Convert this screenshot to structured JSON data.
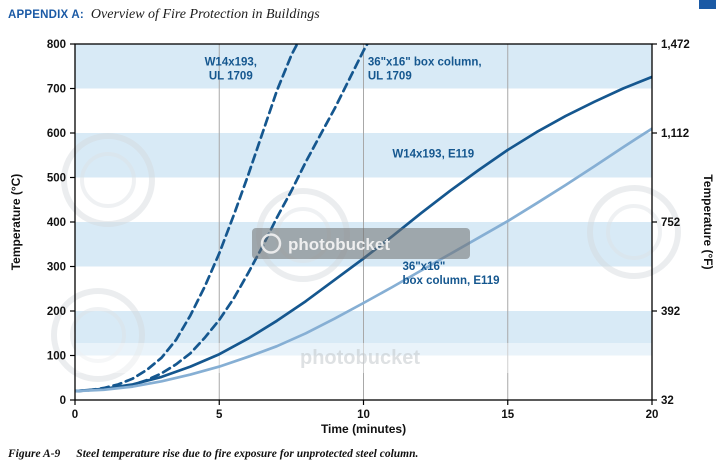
{
  "page": {
    "header_label": "APPENDIX A:",
    "header_title": "Overview of Fire Protection in Buildings",
    "accent_color": "#1b5aa5"
  },
  "caption": {
    "figure_label": "Figure A-9",
    "text": "Steel temperature rise due to fire exposure for unprotected steel column."
  },
  "watermark": {
    "text": "photobucket"
  },
  "chart_data": {
    "type": "line",
    "title": "",
    "xlabel": "Time (minutes)",
    "ylabel_left": "Temperature (°C)",
    "ylabel_right": "Temperature (°F)",
    "xlim": [
      0,
      20
    ],
    "ylim_c": [
      0,
      800
    ],
    "x_ticks": [
      0,
      5,
      10,
      15,
      20
    ],
    "y_ticks_left": [
      0,
      100,
      200,
      300,
      400,
      500,
      600,
      700,
      800
    ],
    "y_ticks_right": [
      {
        "c": 0,
        "label": "32"
      },
      {
        "c": 200,
        "label": "392"
      },
      {
        "c": 400,
        "label": "752"
      },
      {
        "c": 600,
        "label": "1,112"
      },
      {
        "c": 800,
        "label": "1,472"
      }
    ],
    "band_color": "#d8eaf6",
    "band_ranges_c": [
      [
        100,
        200
      ],
      [
        300,
        400
      ],
      [
        500,
        600
      ],
      [
        700,
        800
      ]
    ],
    "gridlines_x": [
      5,
      10,
      15
    ],
    "grid_color": "#a8a8a8",
    "frame_color": "#000000",
    "series": [
      {
        "name": "W14x193, UL 1709",
        "style": "dashed",
        "color": "#15578f",
        "x": [
          0,
          0.5,
          1,
          1.5,
          2,
          2.5,
          3,
          3.5,
          4,
          4.5,
          5,
          5.5,
          6,
          6.5,
          7,
          7.5,
          7.9
        ],
        "y": [
          20,
          22,
          27,
          35,
          48,
          68,
          95,
          135,
          190,
          255,
          330,
          415,
          505,
          600,
          695,
          775,
          825
        ]
      },
      {
        "name": "36\"x16\" box column, UL 1709",
        "style": "dashed",
        "color": "#15578f",
        "x": [
          0,
          1,
          2,
          2.5,
          3,
          3.5,
          4,
          4.5,
          5,
          5.5,
          6,
          6.5,
          7,
          7.5,
          8,
          8.5,
          9,
          9.5,
          10,
          10.35
        ],
        "y": [
          20,
          24,
          34,
          45,
          60,
          80,
          105,
          140,
          180,
          228,
          285,
          345,
          410,
          470,
          535,
          595,
          655,
          720,
          785,
          825
        ]
      },
      {
        "name": "W14x193, E119",
        "style": "solid",
        "color": "#15578f",
        "x": [
          0,
          1,
          2,
          3,
          4,
          5,
          6,
          7,
          8,
          9,
          10,
          11,
          12,
          13,
          14,
          15,
          16,
          17,
          18,
          19,
          20
        ],
        "y": [
          20,
          25,
          35,
          52,
          75,
          103,
          138,
          178,
          222,
          270,
          318,
          368,
          420,
          470,
          517,
          562,
          602,
          638,
          670,
          700,
          726
        ]
      },
      {
        "name": "36\"x16\" box column, E119",
        "style": "solid",
        "color": "#86afd4",
        "x": [
          0,
          1,
          2,
          3,
          4,
          5,
          6,
          7,
          8,
          9,
          10,
          11,
          12,
          13,
          14,
          15,
          16,
          17,
          18,
          19,
          20
        ],
        "y": [
          20,
          23,
          30,
          42,
          57,
          75,
          97,
          121,
          150,
          183,
          218,
          254,
          291,
          328,
          365,
          402,
          442,
          483,
          525,
          568,
          610
        ]
      }
    ],
    "annotations": [
      {
        "lines": [
          "W14x193,",
          "UL 1709"
        ],
        "x": 5.4,
        "y": 752,
        "anchor": "middle",
        "color": "#15578f"
      },
      {
        "lines": [
          "36\"x16\" box column,",
          "UL 1709"
        ],
        "x": 10.15,
        "y": 752,
        "anchor": "start",
        "color": "#15578f"
      },
      {
        "lines": [
          "W14x193, E119"
        ],
        "x": 11.0,
        "y": 545,
        "anchor": "start",
        "color": "#15578f"
      },
      {
        "lines": [
          "36\"x16\"",
          "box column, E119"
        ],
        "x": 11.35,
        "y": 292,
        "anchor": "start",
        "color": "#15578f"
      }
    ]
  }
}
